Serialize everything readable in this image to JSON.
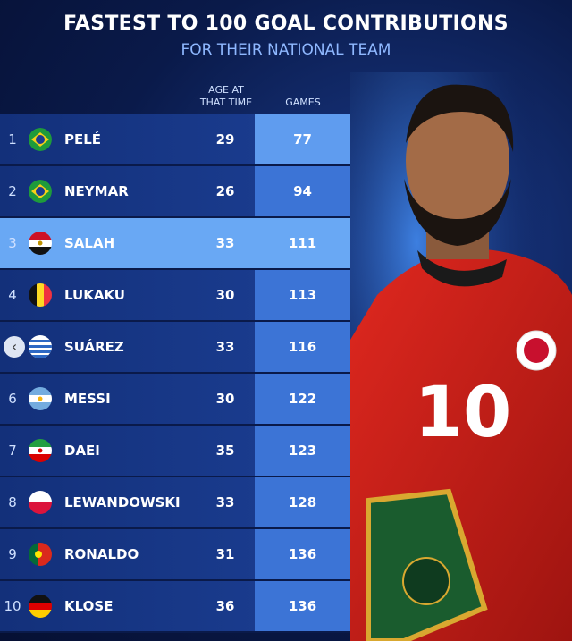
{
  "header": {
    "title": "FASTEST TO 100 GOAL CONTRIBUTIONS",
    "subtitle": "FOR THEIR NATIONAL TEAM"
  },
  "table": {
    "columns": [
      "AGE AT THAT TIME",
      "GAMES"
    ],
    "highlight": 2,
    "rows": [
      {
        "rank": "1",
        "name": "PELÉ",
        "age": "29",
        "games": "77"
      },
      {
        "rank": "2",
        "name": "NEYMAR",
        "age": "26",
        "games": "94"
      },
      {
        "rank": "3",
        "name": "SALAH",
        "age": "33",
        "games": "111"
      },
      {
        "rank": "4",
        "name": "LUKAKU",
        "age": "30",
        "games": "113"
      },
      {
        "name": "SUÁREZ",
        "age": "33",
        "games": "116"
      },
      {
        "rank": "6",
        "name": "MESSI",
        "age": "30",
        "games": "122"
      },
      {
        "rank": "7",
        "name": "DAEI",
        "age": "35",
        "games": "123"
      },
      {
        "rank": "8",
        "name": "LEWANDOWSKI",
        "age": "33",
        "games": "128"
      },
      {
        "rank": "9",
        "name": "RONALDO",
        "age": "31",
        "games": "136"
      },
      {
        "rank": "10",
        "name": "KLOSE",
        "age": "36",
        "games": "136"
      }
    ]
  },
  "photo": {
    "shirt_number": "10"
  }
}
